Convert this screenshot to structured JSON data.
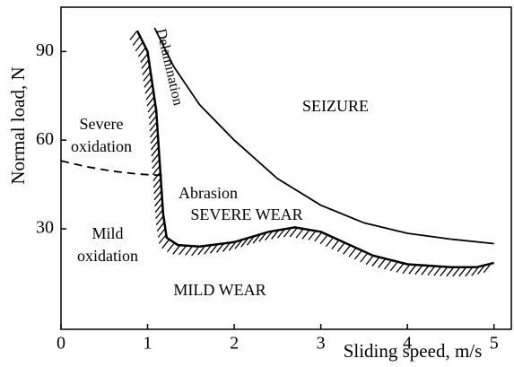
{
  "chart_data": {
    "type": "line",
    "xlabel": "Sliding speed, m/s",
    "ylabel": "Normal load, N",
    "xlim": [
      0,
      5.2
    ],
    "ylim": [
      -4,
      105
    ],
    "xticks": [
      0,
      1,
      2,
      3,
      4,
      5
    ],
    "yticks": [
      30,
      60,
      90
    ],
    "series": [
      {
        "color": "#000000",
        "style": "solid",
        "x": [
          1.08,
          1.3,
          1.6,
          2,
          2.5,
          3,
          3.5,
          4,
          4.5,
          5
        ],
        "values": [
          98,
          85,
          72,
          60,
          47,
          38,
          32,
          28.5,
          26.5,
          25
        ]
      },
      {
        "color": "#000000",
        "style": "hatched",
        "x": [
          0.88,
          1.0,
          1.1,
          1.15,
          1.18,
          1.22,
          1.35,
          1.6,
          2,
          2.4,
          2.7,
          3.0,
          3.3,
          3.6,
          4,
          4.5,
          4.8,
          5
        ],
        "values": [
          97,
          90,
          70,
          48,
          35,
          27,
          24.5,
          24,
          25.5,
          29,
          30.5,
          29,
          25,
          21,
          18,
          17,
          17,
          18.5
        ]
      },
      {
        "color": "#000000",
        "style": "dashed",
        "x": [
          0,
          0.3,
          0.6,
          0.9,
          1.2
        ],
        "values": [
          53,
          51,
          49.5,
          48.5,
          48
        ]
      }
    ],
    "annotations": [
      "SEIZURE",
      "Delamination",
      "Severe",
      "oxidation",
      "Abrasion",
      "SEVERE WEAR",
      "Mild",
      "oxidation",
      "MILD WEAR"
    ]
  }
}
